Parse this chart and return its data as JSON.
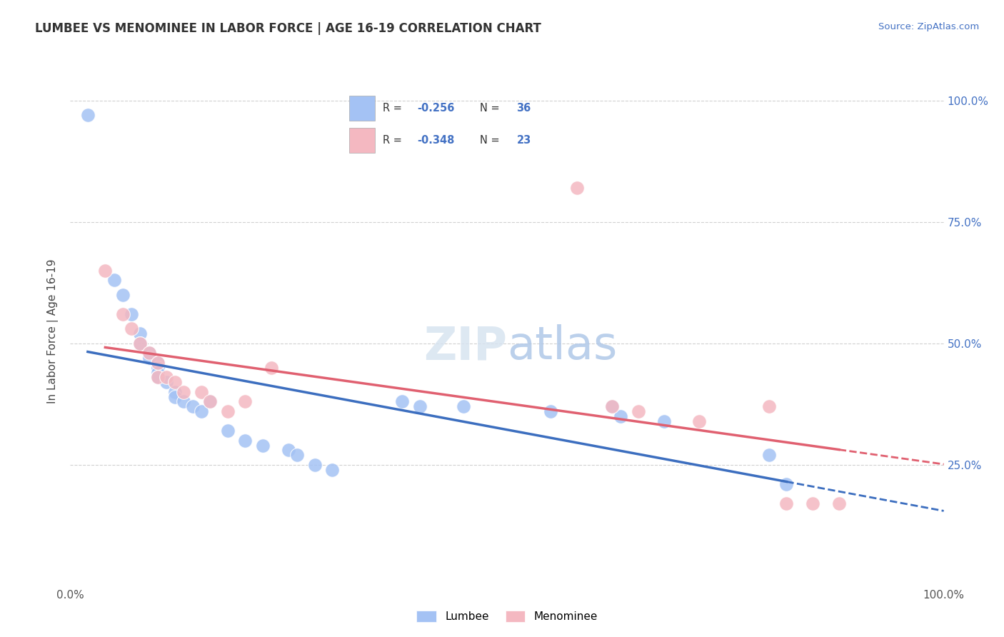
{
  "title": "LUMBEE VS MENOMINEE IN LABOR FORCE | AGE 16-19 CORRELATION CHART",
  "source_text": "Source: ZipAtlas.com",
  "ylabel": "In Labor Force | Age 16-19",
  "xlim": [
    0.0,
    1.0
  ],
  "ylim": [
    0.0,
    1.05
  ],
  "lumbee_color": "#a4c2f4",
  "menominee_color": "#f4b8c1",
  "lumbee_line_color": "#3c6ebf",
  "menominee_line_color": "#e06070",
  "r_lumbee": -0.256,
  "n_lumbee": 36,
  "r_menominee": -0.348,
  "n_menominee": 23,
  "background_color": "#ffffff",
  "grid_color": "#d0d0d0",
  "label_color_blue": "#4472c4",
  "lumbee_x": [
    0.02,
    0.05,
    0.06,
    0.07,
    0.08,
    0.08,
    0.09,
    0.09,
    0.1,
    0.1,
    0.1,
    0.1,
    0.1,
    0.11,
    0.12,
    0.12,
    0.13,
    0.14,
    0.15,
    0.16,
    0.18,
    0.2,
    0.22,
    0.25,
    0.26,
    0.28,
    0.3,
    0.38,
    0.4,
    0.45,
    0.55,
    0.62,
    0.63,
    0.68,
    0.8,
    0.82
  ],
  "lumbee_y": [
    0.97,
    0.63,
    0.6,
    0.56,
    0.52,
    0.5,
    0.48,
    0.47,
    0.46,
    0.45,
    0.44,
    0.43,
    0.43,
    0.42,
    0.4,
    0.39,
    0.38,
    0.37,
    0.36,
    0.38,
    0.32,
    0.3,
    0.29,
    0.28,
    0.27,
    0.25,
    0.24,
    0.38,
    0.37,
    0.37,
    0.36,
    0.37,
    0.35,
    0.34,
    0.27,
    0.21
  ],
  "menominee_x": [
    0.04,
    0.06,
    0.07,
    0.08,
    0.09,
    0.1,
    0.1,
    0.11,
    0.12,
    0.13,
    0.15,
    0.16,
    0.18,
    0.2,
    0.23,
    0.58,
    0.62,
    0.65,
    0.72,
    0.8,
    0.82,
    0.85,
    0.88
  ],
  "menominee_y": [
    0.65,
    0.56,
    0.53,
    0.5,
    0.48,
    0.46,
    0.43,
    0.43,
    0.42,
    0.4,
    0.4,
    0.38,
    0.36,
    0.38,
    0.45,
    0.82,
    0.37,
    0.36,
    0.34,
    0.37,
    0.17,
    0.17,
    0.17
  ],
  "lumbee_line_x_start": 0.02,
  "lumbee_line_x_solid_end": 0.82,
  "lumbee_line_x_dash_end": 1.0,
  "menominee_line_x_start": 0.04,
  "menominee_line_x_solid_end": 0.88,
  "menominee_line_x_dash_end": 1.0
}
